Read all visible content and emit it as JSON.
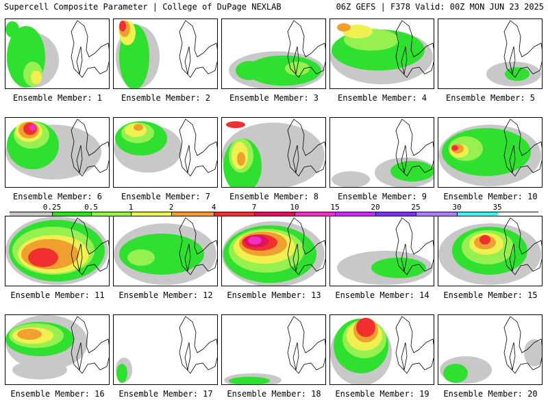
{
  "header": {
    "title": "Supercell Composite Parameter | College of DuPage NEXLAB",
    "valid": "06Z GEFS | F378 Valid: 00Z MON JUN 23 2025"
  },
  "legend": {
    "ticks": [
      "0.25",
      "0.5",
      "1",
      "2",
      "4",
      "7",
      "10",
      "15",
      "20",
      "25",
      "30",
      "35"
    ],
    "colors": [
      "#c8c8c8",
      "#30e030",
      "#96f050",
      "#f0f050",
      "#f0a030",
      "#f03030",
      "#e01060",
      "#f030c0",
      "#c030f0",
      "#8030f0",
      "#b080f0",
      "#40f0f0"
    ]
  },
  "palette": {
    "gray": "#c8c8c8",
    "green": "#30e030",
    "lightgreen": "#96f050",
    "yellow": "#f0f050",
    "orange": "#f0a030",
    "red": "#f03030",
    "crimson": "#e01060",
    "magenta": "#f030c0",
    "purple": "#c030f0"
  },
  "members": [
    {
      "label": "Ensemble Member: 1"
    },
    {
      "label": "Ensemble Member: 2"
    },
    {
      "label": "Ensemble Member: 3"
    },
    {
      "label": "Ensemble Member: 4"
    },
    {
      "label": "Ensemble Member: 5"
    },
    {
      "label": "Ensemble Member: 6"
    },
    {
      "label": "Ensemble Member: 7"
    },
    {
      "label": "Ensemble Member: 8"
    },
    {
      "label": "Ensemble Member: 9"
    },
    {
      "label": "Ensemble Member: 10"
    },
    {
      "label": "Ensemble Member: 11"
    },
    {
      "label": "Ensemble Member: 12"
    },
    {
      "label": "Ensemble Member: 13"
    },
    {
      "label": "Ensemble Member: 14"
    },
    {
      "label": "Ensemble Member: 15"
    },
    {
      "label": "Ensemble Member: 16"
    },
    {
      "label": "Ensemble Member: 17"
    },
    {
      "label": "Ensemble Member: 18"
    },
    {
      "label": "Ensemble Member: 19"
    },
    {
      "label": "Ensemble Member: 20"
    }
  ]
}
